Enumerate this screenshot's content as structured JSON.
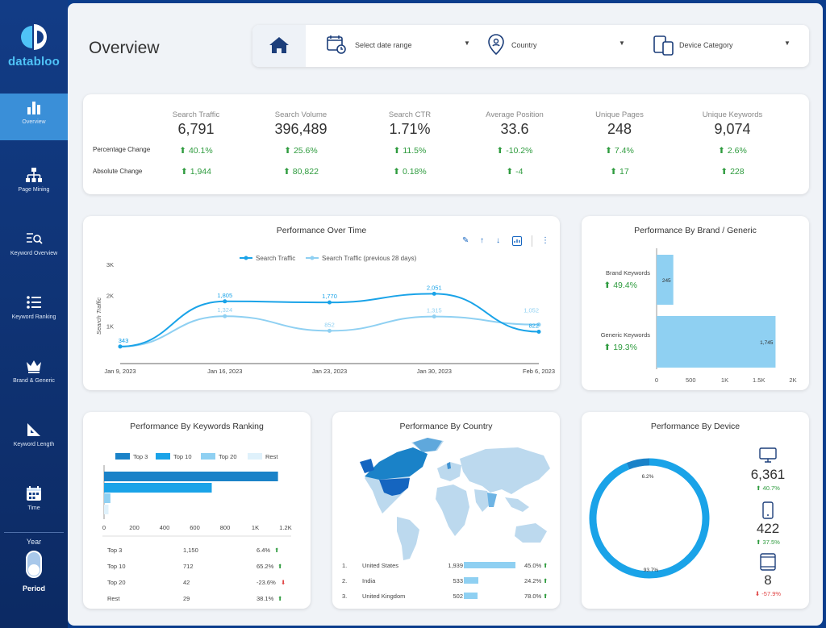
{
  "colors": {
    "accent": "#1aa3e8",
    "light": "#8fd0f2",
    "sidebar": "#123c86",
    "active": "#3a8fd8",
    "up": "#2e9b3e",
    "down": "#e04646"
  },
  "brand": {
    "name": "databloo"
  },
  "sidebar": {
    "items": [
      {
        "label": "Overview",
        "icon": "bar-chart-icon"
      },
      {
        "label": "Page Mining",
        "icon": "sitemap-icon"
      },
      {
        "label": "Keyword Overview",
        "icon": "search-list-icon"
      },
      {
        "label": "Keyword Ranking",
        "icon": "list-icon"
      },
      {
        "label": "Brand & Generic",
        "icon": "crown-icon"
      },
      {
        "label": "Keyword Length",
        "icon": "ruler-triangle-icon"
      },
      {
        "label": "Time",
        "icon": "calendar-icon"
      }
    ],
    "toggle": {
      "top_label": "Year",
      "bottom_label": "Period"
    }
  },
  "header": {
    "title": "Overview",
    "home_icon": "home-icon",
    "date_filter": "Select date range",
    "country_filter": "Country",
    "device_filter": "Device Category"
  },
  "kpis": {
    "row_labels": {
      "pct": "Percentage Change",
      "abs": "Absolute Change"
    },
    "items": [
      {
        "label": "Search Traffic",
        "value": "6,791",
        "pct": "40.1%",
        "abs": "1,944",
        "pct_dir": "up",
        "abs_dir": "up"
      },
      {
        "label": "Search Volume",
        "value": "396,489",
        "pct": "25.6%",
        "abs": "80,822",
        "pct_dir": "up",
        "abs_dir": "up"
      },
      {
        "label": "Search CTR",
        "value": "1.71%",
        "pct": "11.5%",
        "abs": "0.18%",
        "pct_dir": "up",
        "abs_dir": "up"
      },
      {
        "label": "Average Position",
        "value": "33.6",
        "pct": "-10.2%",
        "abs": "-4",
        "pct_dir": "up",
        "abs_dir": "up"
      },
      {
        "label": "Unique Pages",
        "value": "248",
        "pct": "7.4%",
        "abs": "17",
        "pct_dir": "up",
        "abs_dir": "up"
      },
      {
        "label": "Unique Keywords",
        "value": "9,074",
        "pct": "2.6%",
        "abs": "228",
        "pct_dir": "up",
        "abs_dir": "up"
      }
    ]
  },
  "performance_over_time": {
    "title": "Performance Over Time",
    "legend": [
      "Search Traffic",
      "Search Traffic (previous 28 days)"
    ],
    "ylabel": "Search Traffic",
    "yticks": [
      "3K",
      "2K",
      "1K"
    ],
    "xticks": [
      "Jan 9, 2023",
      "Jan 16, 2023",
      "Jan 23, 2023",
      "Jan 30, 2023",
      "Feb 6, 2023"
    ]
  },
  "chart_data": [
    {
      "type": "line",
      "title": "Performance Over Time",
      "x": [
        "Jan 9, 2023",
        "Jan 16, 2023",
        "Jan 23, 2023",
        "Jan 30, 2023",
        "Feb 6, 2023"
      ],
      "ylim": [
        0,
        3000
      ],
      "ylabel": "Search Traffic",
      "series": [
        {
          "name": "Search Traffic",
          "values": [
            343,
            1805,
            1770,
            2051,
            822
          ],
          "labels": [
            "343",
            "1,805",
            "1,770",
            "2,051",
            "822"
          ]
        },
        {
          "name": "Search Traffic (previous 28 days)",
          "values": [
            343,
            1324,
            852,
            1315,
            1052
          ],
          "labels": [
            "343",
            "1,324",
            "852",
            "1,315",
            "1,052"
          ]
        }
      ]
    },
    {
      "type": "bar",
      "title": "Performance By Brand / Generic",
      "categories": [
        "Brand Keywords",
        "Generic Keywords"
      ],
      "values": [
        245,
        1745
      ],
      "changes": [
        "49.4%",
        "19.3%"
      ],
      "xticks": [
        "0",
        "500",
        "1K",
        "1.5K",
        "2K"
      ],
      "xlim": [
        0,
        2000
      ]
    },
    {
      "type": "bar",
      "title": "Performance By Keywords Ranking",
      "legend": [
        "Top 3",
        "Top 10",
        "Top 20",
        "Rest"
      ],
      "categories": [
        "Top 3",
        "Top 10",
        "Top 20",
        "Rest"
      ],
      "values": [
        1150,
        712,
        42,
        29
      ],
      "xticks": [
        "0",
        "200",
        "400",
        "600",
        "800",
        "1K",
        "1.2K"
      ],
      "xlim": [
        0,
        1200
      ],
      "table": [
        {
          "name": "Top 3",
          "value": "1,150",
          "change": "6.4%",
          "dir": "up"
        },
        {
          "name": "Top 10",
          "value": "712",
          "change": "65.2%",
          "dir": "up"
        },
        {
          "name": "Top 20",
          "value": "42",
          "change": "-23.6%",
          "dir": "down"
        },
        {
          "name": "Rest",
          "value": "29",
          "change": "38.1%",
          "dir": "up"
        }
      ]
    },
    {
      "type": "table",
      "title": "Performance By Country",
      "rows": [
        {
          "rank": "1.",
          "country": "United States",
          "value": "1,939",
          "num": 1939,
          "change": "45.0%",
          "dir": "up"
        },
        {
          "rank": "2.",
          "country": "India",
          "value": "533",
          "num": 533,
          "change": "24.2%",
          "dir": "up"
        },
        {
          "rank": "3.",
          "country": "United Kingdom",
          "value": "502",
          "num": 502,
          "change": "78.0%",
          "dir": "up"
        }
      ]
    },
    {
      "type": "pie",
      "title": "Performance By Device",
      "slices": [
        {
          "label": "6.2%",
          "value": 6.2
        },
        {
          "label": "93.7%",
          "value": 93.7
        }
      ],
      "devices": [
        {
          "icon": "desktop-icon",
          "value": "6,361",
          "change": "40.7%",
          "dir": "up"
        },
        {
          "icon": "mobile-icon",
          "value": "422",
          "change": "37.5%",
          "dir": "up"
        },
        {
          "icon": "tablet-icon",
          "value": "8",
          "change": "-57.9%",
          "dir": "down"
        }
      ]
    }
  ]
}
